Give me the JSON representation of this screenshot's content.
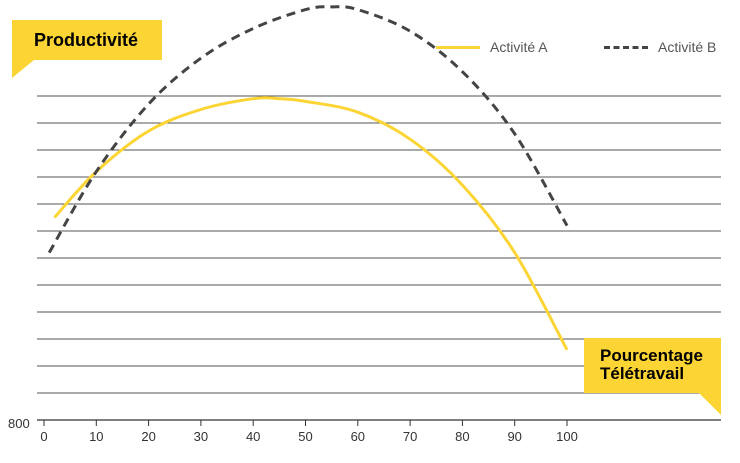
{
  "chart_data": {
    "type": "line",
    "ylabel": "Productivité",
    "xlabel": [
      "Pourcentage",
      "Télétravail"
    ],
    "xlim": [
      0,
      130
    ],
    "ylim": [
      800,
      1000
    ],
    "x_ticks": [
      0,
      10,
      20,
      30,
      40,
      50,
      60,
      70,
      80,
      90,
      100
    ],
    "y_tick_labels": [
      "800"
    ],
    "y_gridlines": [
      810,
      820,
      830,
      840,
      850,
      860,
      870,
      880,
      890,
      900,
      910,
      920
    ],
    "grid": true,
    "legend_position": "top-right",
    "series": [
      {
        "name": "Activité A",
        "color": "#fcd535",
        "style": "solid",
        "points": [
          [
            2,
            875
          ],
          [
            10,
            892
          ],
          [
            20,
            907
          ],
          [
            30,
            915
          ],
          [
            40,
            919
          ],
          [
            45,
            919
          ],
          [
            50,
            918
          ],
          [
            60,
            914
          ],
          [
            70,
            904
          ],
          [
            80,
            887
          ],
          [
            90,
            862
          ],
          [
            100,
            826
          ]
        ]
      },
      {
        "name": "Activité B",
        "color": "#444444",
        "style": "dashed",
        "points": [
          [
            1,
            862
          ],
          [
            10,
            892
          ],
          [
            20,
            917
          ],
          [
            30,
            934
          ],
          [
            40,
            945
          ],
          [
            50,
            952
          ],
          [
            55,
            953
          ],
          [
            60,
            952
          ],
          [
            70,
            944
          ],
          [
            80,
            929
          ],
          [
            90,
            906
          ],
          [
            100,
            872
          ]
        ]
      }
    ]
  }
}
